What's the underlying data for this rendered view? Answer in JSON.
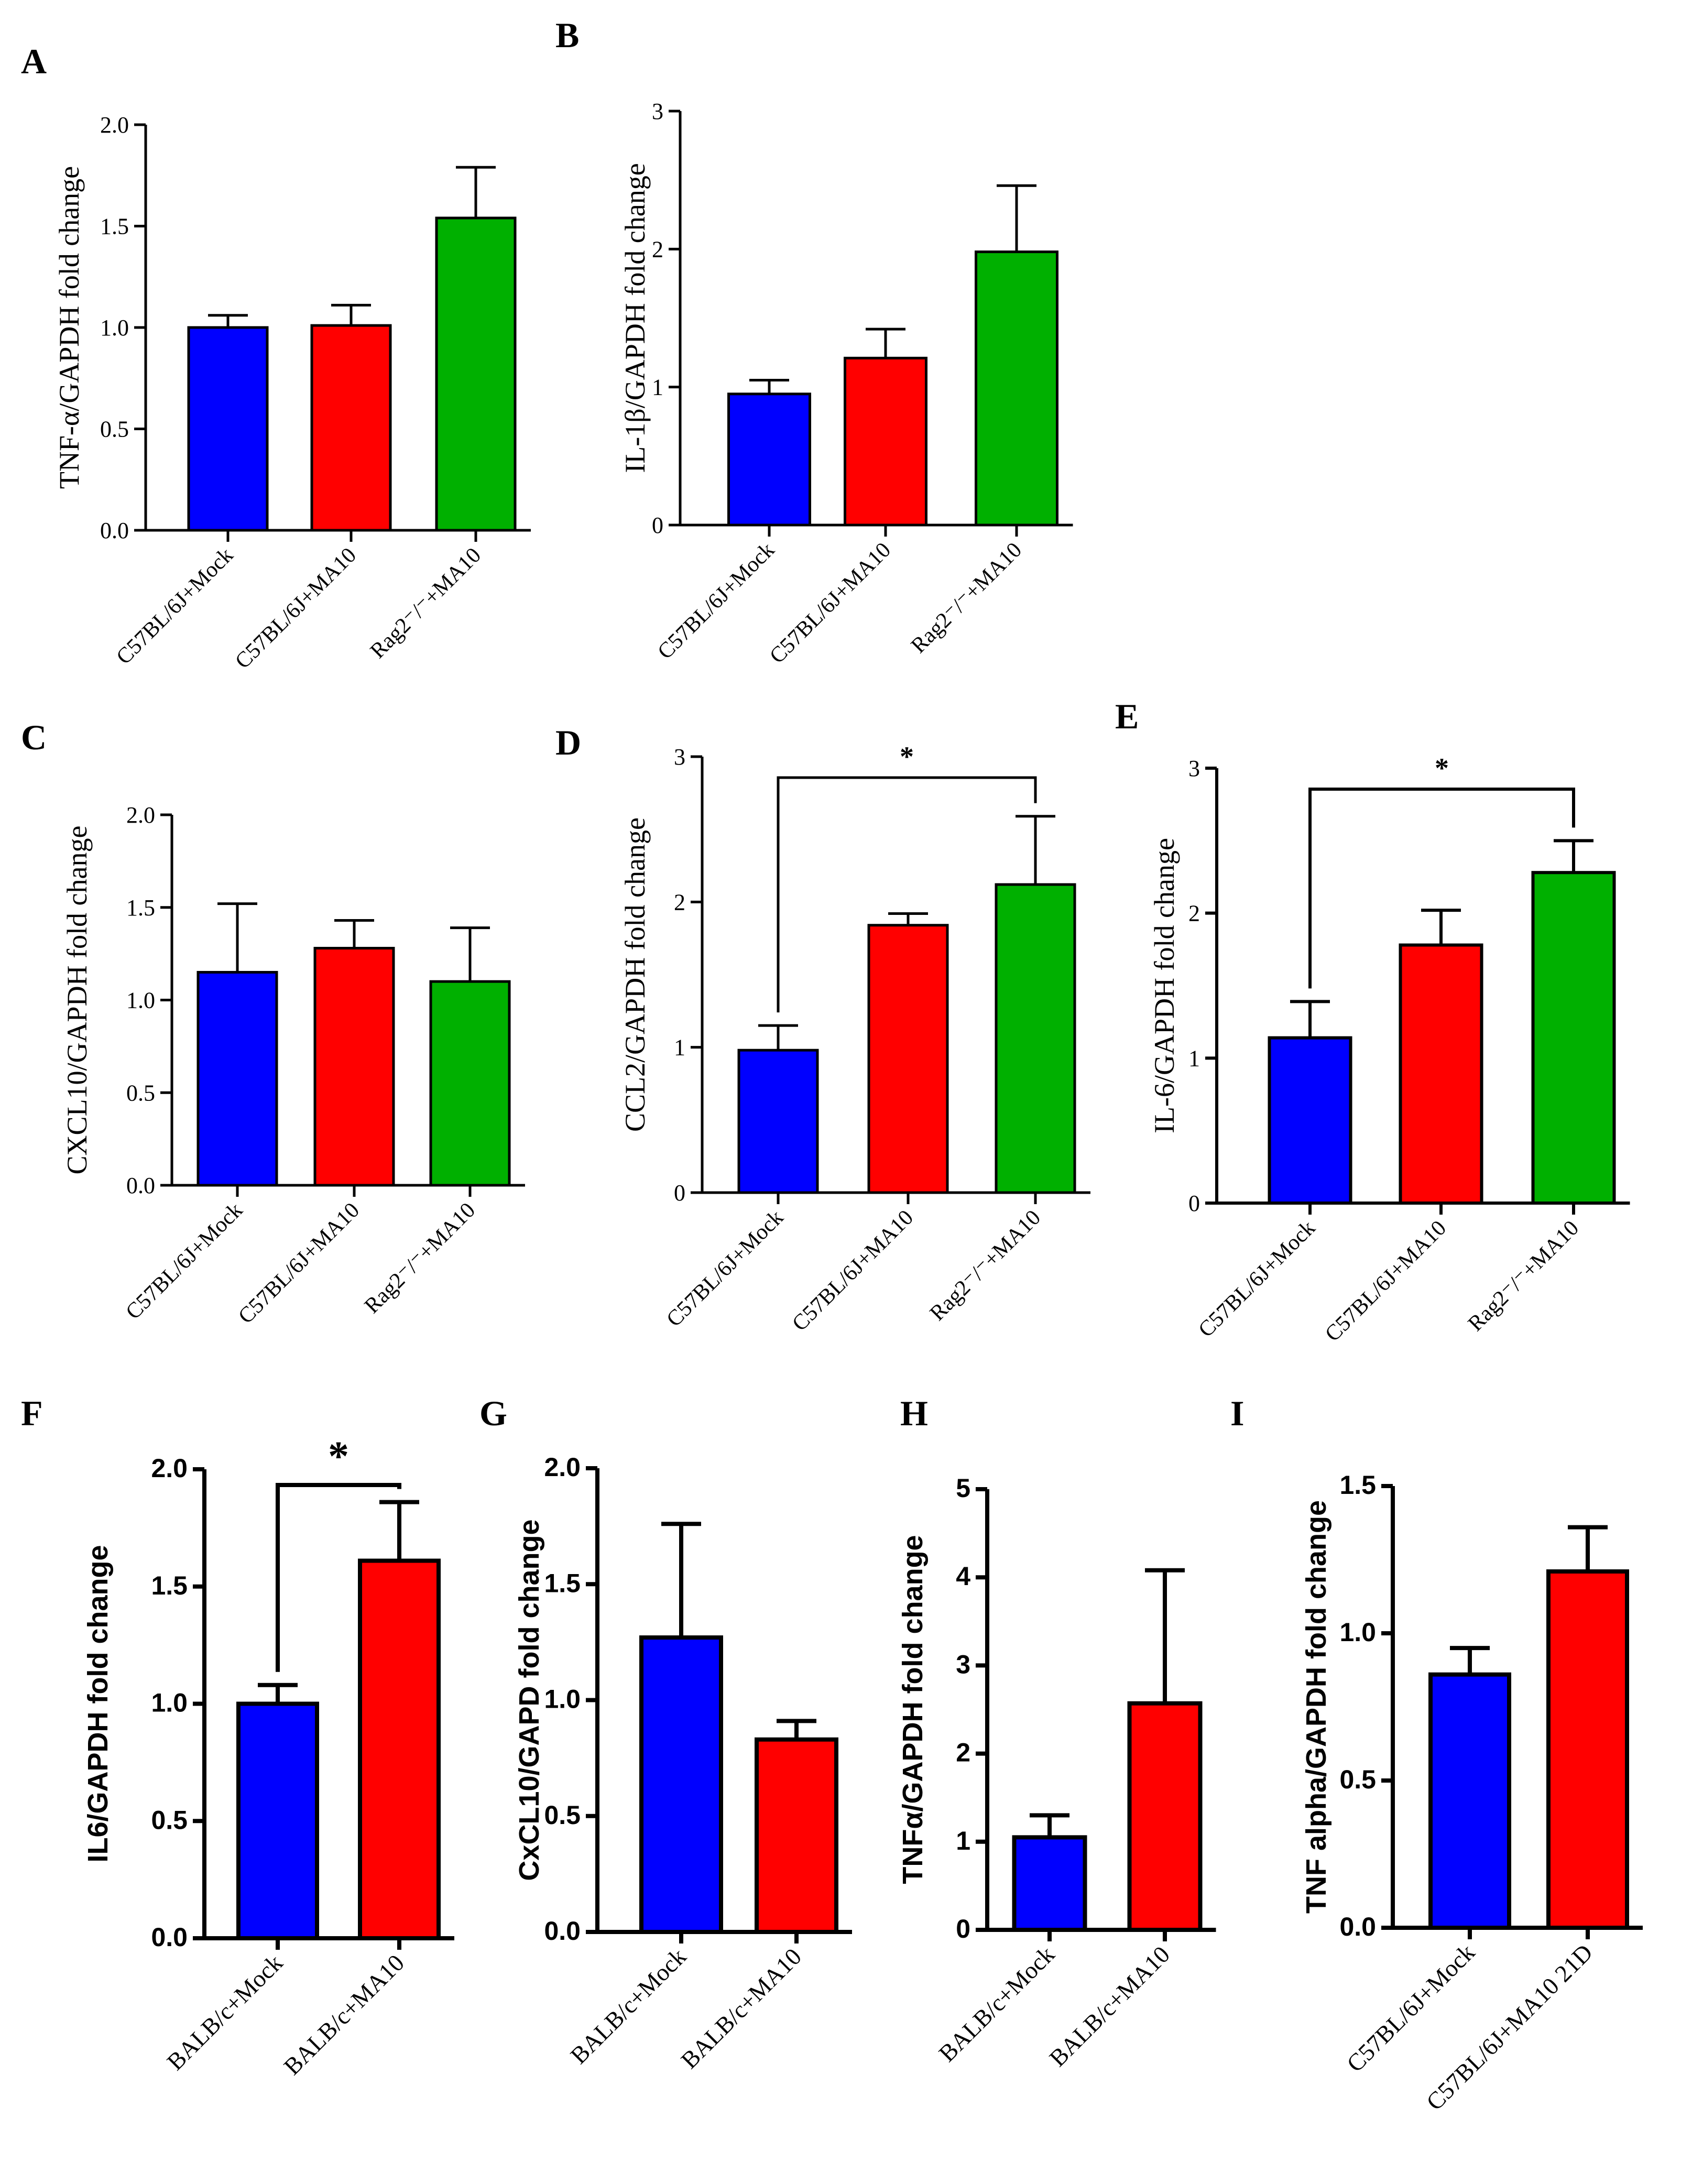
{
  "colors": {
    "blue": "#0000ff",
    "red": "#ff0000",
    "green": "#00b000"
  },
  "chart_data": [
    {
      "panel": "A",
      "type": "bar",
      "ylabel": "TNF-α/GAPDH fold change",
      "ylim": [
        0,
        2.0
      ],
      "yticks": [
        "0.0",
        "0.5",
        "1.0",
        "1.5",
        "2.0"
      ],
      "categories": [
        "C57BL/6J+Mock",
        "C57BL/6J+MA10",
        "Rag2⁻/⁻+MA10"
      ],
      "values": [
        1.0,
        1.01,
        1.54
      ],
      "errors": [
        0.06,
        0.1,
        0.25
      ],
      "colors": [
        "blue",
        "red",
        "green"
      ],
      "significance": []
    },
    {
      "panel": "B",
      "type": "bar",
      "ylabel": "IL-1β/GAPDH fold change",
      "ylim": [
        0,
        3
      ],
      "yticks": [
        "0",
        "1",
        "2",
        "3"
      ],
      "categories": [
        "C57BL/6J+Mock",
        "C57BL/6J+MA10",
        "Rag2⁻/⁻+MA10"
      ],
      "values": [
        0.95,
        1.21,
        1.98
      ],
      "errors": [
        0.1,
        0.21,
        0.48
      ],
      "colors": [
        "blue",
        "red",
        "green"
      ],
      "significance": []
    },
    {
      "panel": "C",
      "type": "bar",
      "ylabel": "CXCL10/GAPDH fold change",
      "ylim": [
        0,
        2.0
      ],
      "yticks": [
        "0.0",
        "0.5",
        "1.0",
        "1.5",
        "2.0"
      ],
      "categories": [
        "C57BL/6J+Mock",
        "C57BL/6J+MA10",
        "Rag2⁻/⁻+MA10"
      ],
      "values": [
        1.15,
        1.28,
        1.1
      ],
      "errors": [
        0.37,
        0.15,
        0.29
      ],
      "colors": [
        "blue",
        "red",
        "green"
      ],
      "significance": []
    },
    {
      "panel": "D",
      "type": "bar",
      "ylabel": "CCL2/GAPDH fold change",
      "ylim": [
        0,
        3
      ],
      "yticks": [
        "0",
        "1",
        "2",
        "3"
      ],
      "categories": [
        "C57BL/6J+Mock",
        "C57BL/6J+MA10",
        "Rag2⁻/⁻+MA10"
      ],
      "values": [
        0.98,
        1.84,
        2.12
      ],
      "errors": [
        0.17,
        0.08,
        0.47
      ],
      "colors": [
        "blue",
        "red",
        "green"
      ],
      "significance": [
        {
          "from": 0,
          "to": 2,
          "label": "*"
        }
      ]
    },
    {
      "panel": "E",
      "type": "bar",
      "ylabel": "IL-6/GAPDH fold change",
      "ylim": [
        0,
        3
      ],
      "yticks": [
        "0",
        "1",
        "2",
        "3"
      ],
      "categories": [
        "C57BL/6J+Mock",
        "C57BL/6J+MA10",
        "Rag2⁻/⁻+MA10"
      ],
      "values": [
        1.14,
        1.78,
        2.28
      ],
      "errors": [
        0.25,
        0.24,
        0.22
      ],
      "colors": [
        "blue",
        "red",
        "green"
      ],
      "significance": [
        {
          "from": 0,
          "to": 2,
          "label": "*"
        }
      ]
    },
    {
      "panel": "F",
      "type": "bar",
      "ylabel": "IL6/GAPDH fold change",
      "ylim": [
        0,
        2.0
      ],
      "yticks": [
        "0.0",
        "0.5",
        "1.0",
        "1.5",
        "2.0"
      ],
      "categories": [
        "BALB/c+Mock",
        "BALB/c+MA10"
      ],
      "values": [
        1.0,
        1.61
      ],
      "errors": [
        0.08,
        0.25
      ],
      "colors": [
        "blue",
        "red"
      ],
      "significance": [
        {
          "from": 0,
          "to": 1,
          "label": "*"
        }
      ]
    },
    {
      "panel": "G",
      "type": "bar",
      "ylabel": "CxCL10/GAPD fold change",
      "ylim": [
        0,
        2.0
      ],
      "yticks": [
        "0.0",
        "0.5",
        "1.0",
        "1.5",
        "2.0"
      ],
      "categories": [
        "BALB/c+Mock",
        "BALB/c+MA10"
      ],
      "values": [
        1.27,
        0.83
      ],
      "errors": [
        0.49,
        0.08
      ],
      "colors": [
        "blue",
        "red"
      ],
      "significance": []
    },
    {
      "panel": "H",
      "type": "bar",
      "ylabel": "TNFα/GAPDH fold change",
      "ylim": [
        0,
        5
      ],
      "yticks": [
        "0",
        "1",
        "2",
        "3",
        "4",
        "5"
      ],
      "categories": [
        "BALB/c+Mock",
        "BALB/c+MA10"
      ],
      "values": [
        1.05,
        2.57
      ],
      "errors": [
        0.25,
        1.51
      ],
      "colors": [
        "blue",
        "red"
      ],
      "significance": []
    },
    {
      "panel": "I",
      "type": "bar",
      "ylabel": "TNF alpha/GAPDH fold change",
      "ylim": [
        0,
        1.5
      ],
      "yticks": [
        "0.0",
        "0.5",
        "1.0",
        "1.5"
      ],
      "categories": [
        "C57BL/6J+Mock",
        "C57BL/6J+MA10 21D"
      ],
      "values": [
        0.86,
        1.21
      ],
      "errors": [
        0.09,
        0.15
      ],
      "colors": [
        "blue",
        "red"
      ],
      "significance": []
    }
  ]
}
